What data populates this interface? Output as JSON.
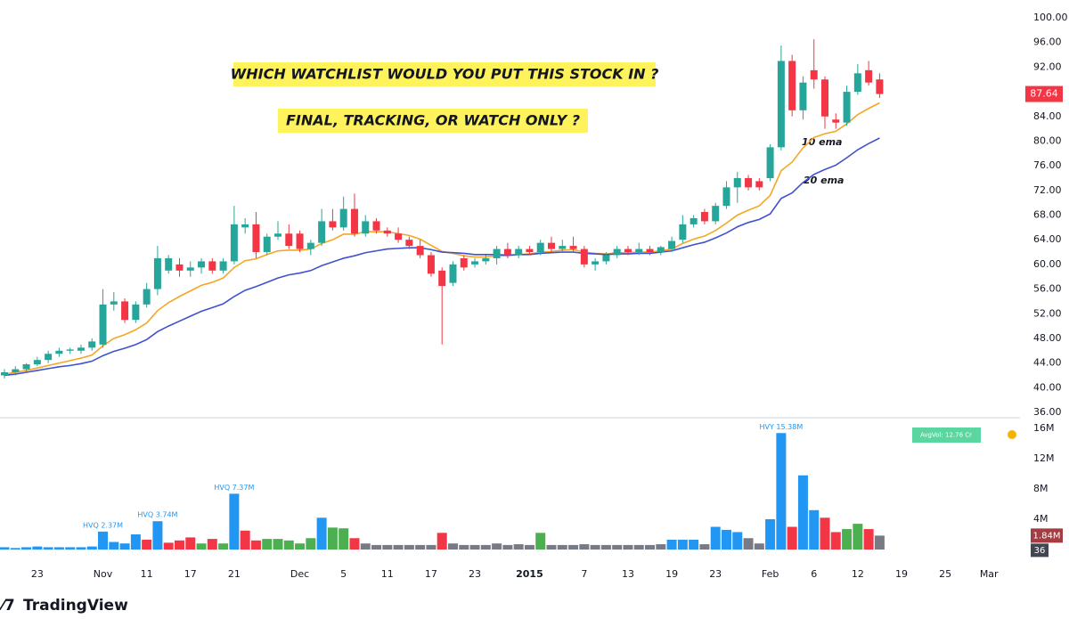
{
  "chart_data": [
    {
      "type": "candlestick",
      "annotations": [
        "WHICH WATCHLIST WOULD YOU PUT THIS STOCK IN ?",
        "FINAL, TRACKING, OR WATCH ONLY ?"
      ],
      "up_color": "#26a69a",
      "down_color": "#f23645",
      "open": [
        42,
        42.5,
        43,
        43.8,
        44.5,
        45.5,
        46,
        46,
        46.5,
        47,
        53.5,
        54,
        51,
        53.5,
        56,
        59,
        60,
        59,
        59.5,
        60.5,
        59,
        60.5,
        66,
        66.5,
        62,
        64.5,
        65,
        65,
        62.5,
        63.5,
        67,
        66,
        69,
        65,
        67,
        65.5,
        65,
        64,
        63,
        61.5,
        59,
        57,
        61,
        60,
        60.5,
        61,
        62.5,
        61.5,
        62.5,
        62,
        63.5,
        62.5,
        63,
        62.5,
        60,
        60.5,
        61.5,
        62.5,
        62,
        62.5,
        62,
        62.5,
        64,
        66.5,
        68.5,
        67,
        69.5,
        72.5,
        74,
        73.5,
        74,
        79,
        93,
        85,
        91.5,
        90,
        83.5,
        83,
        88,
        91.5,
        90
      ],
      "high": [
        43,
        43.5,
        44,
        45,
        46,
        46.5,
        46.5,
        47,
        48,
        56,
        55.5,
        54.5,
        54,
        57,
        63,
        61.5,
        61,
        60.5,
        61,
        61,
        61,
        69.5,
        67.5,
        68.5,
        65,
        67,
        66.5,
        65.5,
        64,
        69,
        69,
        71,
        71.5,
        68,
        67.5,
        66,
        66,
        64.5,
        64,
        62,
        59.5,
        60.5,
        61.5,
        61,
        61.5,
        63,
        63.5,
        63,
        63,
        64,
        64.5,
        64,
        64.5,
        63,
        61,
        62,
        63,
        63,
        63.5,
        63,
        63,
        64.5,
        68,
        68,
        69,
        70,
        73.5,
        75,
        74.5,
        74,
        79.5,
        95.5,
        94,
        90.5,
        96.5,
        90.5,
        84.5,
        89,
        92.5,
        93,
        91
      ],
      "low": [
        41.5,
        42,
        42.5,
        43.5,
        44,
        45,
        45.5,
        45.5,
        46,
        46.5,
        52.5,
        50.5,
        50.5,
        53,
        55,
        58.5,
        58,
        58,
        58.5,
        58.5,
        58.5,
        60,
        65,
        61,
        61.5,
        64,
        62.5,
        62,
        61.5,
        63,
        65.5,
        65.5,
        64.5,
        64.5,
        65,
        64.5,
        63.5,
        62.5,
        61,
        58,
        47,
        56.5,
        59,
        59.5,
        60,
        60,
        61,
        61,
        61.5,
        61.5,
        62,
        62,
        62,
        59.5,
        59,
        60,
        61,
        61.5,
        61.5,
        61.5,
        61.5,
        62,
        63.5,
        66,
        66.5,
        66.5,
        69,
        70,
        72,
        72,
        73.5,
        78.5,
        84,
        83.5,
        88.5,
        82,
        82,
        82.5,
        87.5,
        89,
        87
      ],
      "close": [
        42.5,
        43,
        43.8,
        44.5,
        45.5,
        46,
        46.2,
        46.5,
        47.5,
        53.5,
        54,
        51,
        53.5,
        56,
        61,
        61,
        59,
        59.5,
        60.5,
        59,
        60.5,
        66.5,
        66.5,
        62,
        64.5,
        65,
        63,
        62.5,
        63.5,
        67,
        66,
        69,
        65,
        67,
        65.5,
        65,
        64,
        63,
        61.5,
        58.5,
        56.5,
        60,
        59.5,
        60.5,
        61,
        62.5,
        61.5,
        62.5,
        62,
        63.5,
        62.5,
        63,
        62.5,
        60,
        60.5,
        61.5,
        62.5,
        62,
        62.5,
        62,
        62.8,
        63.8,
        66.5,
        67.5,
        67,
        69.5,
        72.5,
        74,
        72.5,
        72.5,
        79,
        93,
        85,
        89.5,
        90,
        84,
        83,
        88,
        91,
        89.5,
        87.64
      ],
      "lines": [
        {
          "name": "10 ema",
          "color": "#f5a623",
          "values": [
            42.2,
            42.5,
            42.8,
            43.2,
            43.6,
            44,
            44.4,
            44.8,
            45.3,
            46.8,
            48,
            48.6,
            49.4,
            50.5,
            52.5,
            53.8,
            54.8,
            55.7,
            56.6,
            57.1,
            57.8,
            59.5,
            60.6,
            60.9,
            61.6,
            62.2,
            62.3,
            62.3,
            62.5,
            63.4,
            64,
            64.9,
            64.9,
            65.3,
            65.3,
            65.3,
            65,
            64.7,
            64.1,
            63.1,
            62.1,
            61.8,
            61.4,
            61.2,
            61.2,
            61.4,
            61.4,
            61.6,
            61.7,
            62,
            62.1,
            62.3,
            62.4,
            62,
            61.8,
            61.7,
            61.9,
            61.9,
            62,
            62,
            62.2,
            62.5,
            63.4,
            64.1,
            64.6,
            65.5,
            66.7,
            68,
            68.8,
            69.5,
            71.2,
            75.2,
            76.6,
            78.9,
            80.6,
            81.2,
            81.6,
            82.8,
            84.3,
            85.3,
            86.2
          ]
        },
        {
          "name": "20 ema",
          "color": "#3f51d0",
          "values": [
            42,
            42.2,
            42.5,
            42.8,
            43.1,
            43.4,
            43.6,
            43.9,
            44.3,
            45.2,
            45.9,
            46.4,
            47,
            47.8,
            49.1,
            50,
            50.8,
            51.6,
            52.4,
            53,
            53.6,
            54.8,
            55.8,
            56.4,
            57.1,
            57.8,
            58.3,
            58.6,
            59,
            59.8,
            60.4,
            61,
            61.4,
            61.9,
            62.2,
            62.5,
            62.6,
            62.7,
            62.7,
            62.4,
            62,
            61.9,
            61.8,
            61.6,
            61.6,
            61.6,
            61.5,
            61.6,
            61.6,
            61.8,
            61.9,
            62,
            62,
            61.8,
            61.7,
            61.6,
            61.7,
            61.7,
            61.8,
            61.8,
            62,
            62.2,
            62.7,
            63.2,
            63.6,
            64.3,
            65.1,
            66.1,
            66.8,
            67.3,
            68.2,
            70.7,
            71.6,
            73.3,
            74.6,
            75.4,
            76.1,
            77.3,
            78.6,
            79.6,
            80.5
          ]
        }
      ],
      "ylim": [
        36,
        100
      ],
      "yticks": [
        {
          "value": 100,
          "label": "100.00"
        },
        {
          "value": 96,
          "label": "96.00"
        },
        {
          "value": 92,
          "label": "92.00"
        },
        {
          "value": 88,
          "label": "88.00"
        },
        {
          "value": 84,
          "label": "84.00"
        },
        {
          "value": 80,
          "label": "80.00"
        },
        {
          "value": 76,
          "label": "76.00"
        },
        {
          "value": 72,
          "label": "72.00"
        },
        {
          "value": 68,
          "label": "68.00"
        },
        {
          "value": 64,
          "label": "64.00"
        },
        {
          "value": 60,
          "label": "60.00"
        },
        {
          "value": 56,
          "label": "56.00"
        },
        {
          "value": 52,
          "label": "52.00"
        },
        {
          "value": 48,
          "label": "48.00"
        },
        {
          "value": 44,
          "label": "44.00"
        },
        {
          "value": 40,
          "label": "40.00"
        },
        {
          "value": 36,
          "label": "36.00"
        }
      ],
      "xticks": [
        {
          "value": 3,
          "label": "23"
        },
        {
          "value": 9,
          "label": "Nov"
        },
        {
          "value": 13,
          "label": "11"
        },
        {
          "value": 17,
          "label": "17"
        },
        {
          "value": 21,
          "label": "21"
        },
        {
          "value": 27,
          "label": "Dec"
        },
        {
          "value": 31,
          "label": "5"
        },
        {
          "value": 35,
          "label": "11"
        },
        {
          "value": 39,
          "label": "17"
        },
        {
          "value": 43,
          "label": "23"
        },
        {
          "value": 48,
          "label": "2015"
        },
        {
          "value": 53,
          "label": "7"
        },
        {
          "value": 57,
          "label": "13"
        },
        {
          "value": 61,
          "label": "19"
        },
        {
          "value": 65,
          "label": "23"
        },
        {
          "value": 70,
          "label": "Feb"
        },
        {
          "value": 74,
          "label": "6"
        },
        {
          "value": 78,
          "label": "12"
        },
        {
          "value": 82,
          "label": "19"
        },
        {
          "value": 86,
          "label": "25"
        },
        {
          "value": 90,
          "label": "Mar"
        }
      ]
    },
    {
      "type": "bar",
      "values": [
        0.3,
        0.2,
        0.3,
        0.4,
        0.3,
        0.3,
        0.3,
        0.3,
        0.4,
        2.37,
        1,
        0.8,
        2,
        1.3,
        3.74,
        0.9,
        1.2,
        1.6,
        0.8,
        1.4,
        0.8,
        7.37,
        2.5,
        1.2,
        1.4,
        1.4,
        1.2,
        0.8,
        1.5,
        4.2,
        2.9,
        2.8,
        1.5,
        0.8,
        0.6,
        0.6,
        0.6,
        0.6,
        0.6,
        0.6,
        2.2,
        0.8,
        0.6,
        0.6,
        0.6,
        0.8,
        0.6,
        0.7,
        0.6,
        2.2,
        0.6,
        0.6,
        0.6,
        0.7,
        0.6,
        0.6,
        0.6,
        0.6,
        0.6,
        0.6,
        0.7,
        1.3,
        1.3,
        1.3,
        0.7,
        3,
        2.6,
        2.3,
        1.5,
        0.8,
        4,
        15.38,
        3,
        9.8,
        5.2,
        4.2,
        2.3,
        2.7,
        3.4,
        2.7,
        1.84
      ],
      "value_labels": [
        null,
        null,
        null,
        null,
        null,
        null,
        null,
        null,
        null,
        "HVQ 2.37M",
        null,
        null,
        null,
        null,
        "HVQ 3.74M",
        null,
        null,
        null,
        null,
        null,
        null,
        "HVQ 7.37M",
        null,
        null,
        null,
        null,
        null,
        null,
        null,
        null,
        null,
        null,
        null,
        null,
        null,
        null,
        null,
        null,
        null,
        null,
        null,
        null,
        null,
        null,
        null,
        null,
        null,
        null,
        null,
        null,
        null,
        null,
        null,
        null,
        null,
        null,
        null,
        null,
        null,
        null,
        null,
        null,
        null,
        null,
        null,
        null,
        null,
        null,
        null,
        null,
        null,
        "HVY 15.38M",
        null,
        null,
        null,
        null,
        null,
        null,
        null,
        null,
        "1.84M"
      ],
      "colors": [
        "#2196f3",
        "#2196f3",
        "#2196f3",
        "#2196f3",
        "#2196f3",
        "#2196f3",
        "#2196f3",
        "#2196f3",
        "#2196f3",
        "#2196f3",
        "#2196f3",
        "#2196f3",
        "#2196f3",
        "#f23645",
        "#2196f3",
        "#f23645",
        "#f23645",
        "#f23645",
        "#4caf50",
        "#f23645",
        "#4caf50",
        "#2196f3",
        "#f23645",
        "#f23645",
        "#4caf50",
        "#4caf50",
        "#4caf50",
        "#4caf50",
        "#4caf50",
        "#2196f3",
        "#4caf50",
        "#4caf50",
        "#f23645",
        "#787b86",
        "#787b86",
        "#787b86",
        "#787b86",
        "#787b86",
        "#787b86",
        "#787b86",
        "#f23645",
        "#787b86",
        "#787b86",
        "#787b86",
        "#787b86",
        "#787b86",
        "#787b86",
        "#787b86",
        "#787b86",
        "#4caf50",
        "#787b86",
        "#787b86",
        "#787b86",
        "#787b86",
        "#787b86",
        "#787b86",
        "#787b86",
        "#787b86",
        "#787b86",
        "#787b86",
        "#787b86",
        "#2196f3",
        "#2196f3",
        "#2196f3",
        "#787b86",
        "#2196f3",
        "#2196f3",
        "#2196f3",
        "#787b86",
        "#787b86",
        "#2196f3",
        "#2196f3",
        "#f23645",
        "#2196f3",
        "#2196f3",
        "#f23645",
        "#f23645",
        "#4caf50",
        "#4caf50",
        "#f23645",
        "#787b86"
      ],
      "ylim": [
        0,
        16
      ],
      "yticks": [
        {
          "value": 4,
          "label": "4M"
        },
        {
          "value": 8,
          "label": "8M"
        },
        {
          "value": 12,
          "label": "12M"
        },
        {
          "value": 16,
          "label": "16M"
        }
      ],
      "avg_volume_label": "AvgVol: 12.76 Cr",
      "counter": 36
    }
  ],
  "brand": "TradingView"
}
